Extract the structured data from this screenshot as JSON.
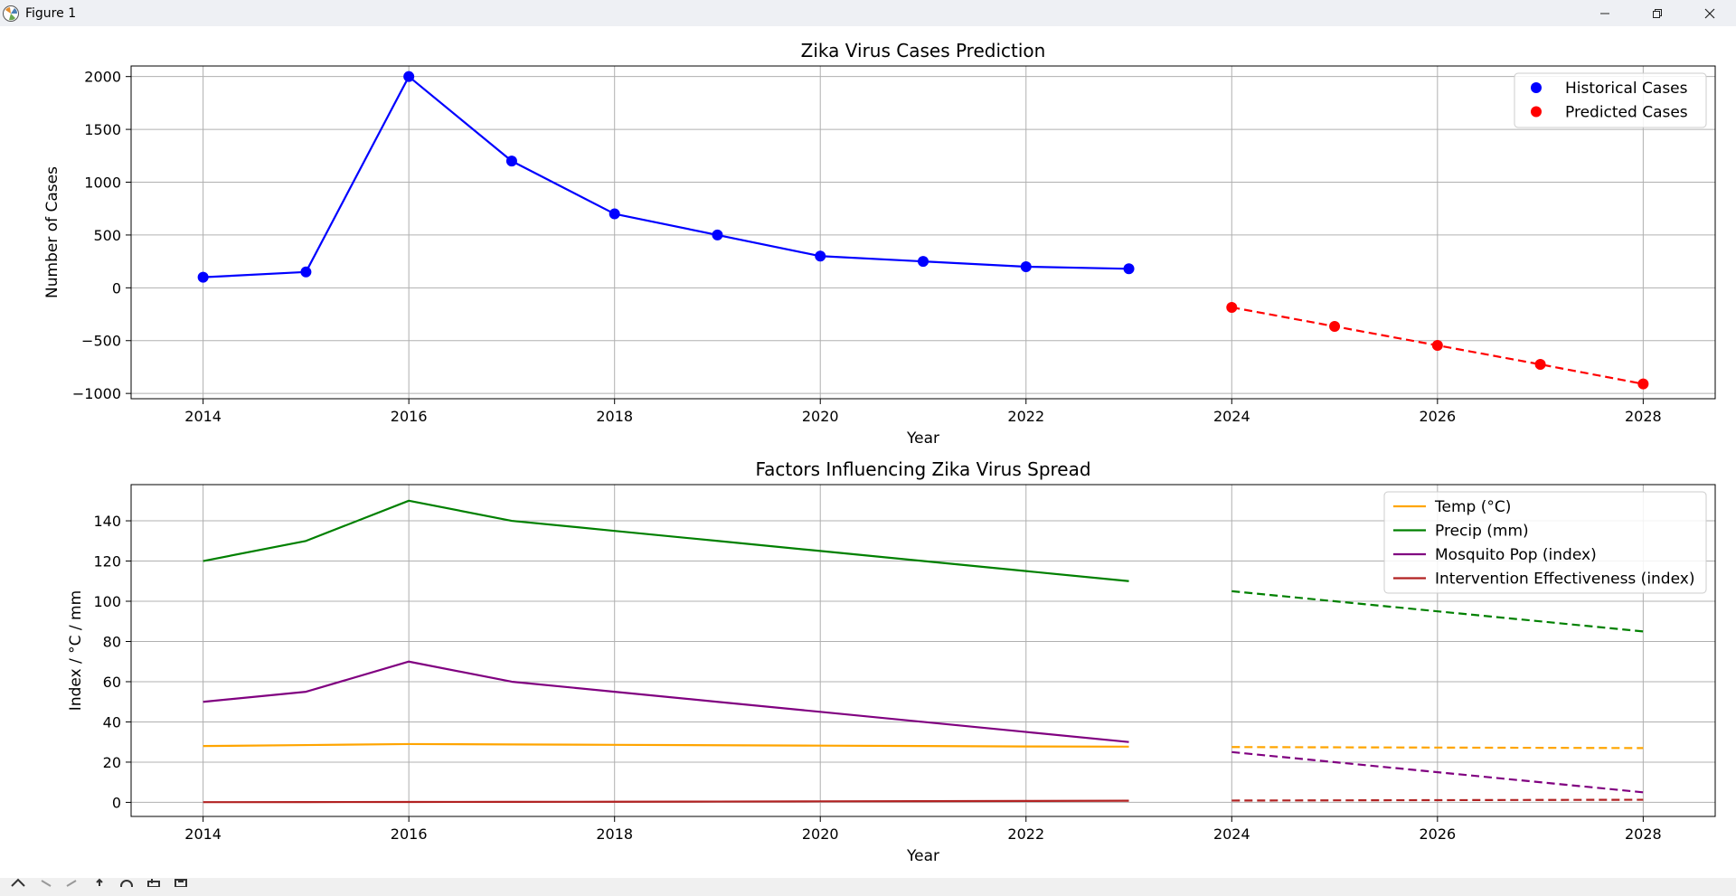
{
  "window": {
    "title": "Figure 1"
  },
  "toolbar": {
    "icons": [
      "home-icon",
      "back-icon",
      "forward-icon",
      "pan-icon",
      "zoom-icon",
      "configure-icon",
      "save-icon"
    ]
  },
  "colors": {
    "historical": "#0000ff",
    "predicted": "#ff0000",
    "temp": "#ffa500",
    "precip": "#008000",
    "mosquito": "#800080",
    "intervention": "#b22222"
  },
  "chart_data": [
    {
      "type": "line",
      "title": "Zika Virus Cases Prediction",
      "xlabel": "Year",
      "ylabel": "Number of Cases",
      "xlim": [
        2013.3,
        2028.7
      ],
      "ylim": [
        -1050,
        2100
      ],
      "xticks": [
        2014,
        2016,
        2018,
        2020,
        2022,
        2024,
        2026,
        2028
      ],
      "yticks": [
        -1000,
        -500,
        0,
        500,
        1000,
        1500,
        2000
      ],
      "ytick_labels": [
        "−1000",
        "−500",
        "0",
        "500",
        "1000",
        "1500",
        "2000"
      ],
      "grid": true,
      "legend": "top-right",
      "series": [
        {
          "name": "Historical Cases",
          "color": "#0000ff",
          "style": "solid",
          "markers": true,
          "x": [
            2014,
            2015,
            2016,
            2017,
            2018,
            2019,
            2020,
            2021,
            2022,
            2023
          ],
          "y": [
            100,
            150,
            2000,
            1200,
            700,
            500,
            300,
            250,
            200,
            180
          ]
        },
        {
          "name": "Predicted Cases",
          "color": "#ff0000",
          "style": "dashed",
          "markers": true,
          "x": [
            2024,
            2025,
            2026,
            2027,
            2028
          ],
          "y": [
            -185,
            -365,
            -545,
            -725,
            -910
          ]
        }
      ]
    },
    {
      "type": "line",
      "title": "Factors Influencing Zika Virus Spread",
      "xlabel": "Year",
      "ylabel": "Index / °C / mm",
      "xlim": [
        2013.3,
        2028.7
      ],
      "ylim": [
        -7,
        158
      ],
      "xticks": [
        2014,
        2016,
        2018,
        2020,
        2022,
        2024,
        2026,
        2028
      ],
      "yticks": [
        0,
        20,
        40,
        60,
        80,
        100,
        120,
        140
      ],
      "ytick_labels": [
        "0",
        "20",
        "40",
        "60",
        "80",
        "100",
        "120",
        "140"
      ],
      "grid": true,
      "legend": "top-right",
      "series": [
        {
          "name": "Temp (°C)",
          "color": "#ffa500",
          "style": "solid",
          "x": [
            2014,
            2015,
            2016,
            2017,
            2018,
            2019,
            2020,
            2021,
            2022,
            2023
          ],
          "y": [
            28,
            28.5,
            29,
            28.8,
            28.6,
            28.4,
            28.2,
            28,
            27.8,
            27.7
          ]
        },
        {
          "name": "Precip (mm)",
          "color": "#008000",
          "style": "solid",
          "x": [
            2014,
            2015,
            2016,
            2017,
            2018,
            2019,
            2020,
            2021,
            2022,
            2023
          ],
          "y": [
            120,
            130,
            150,
            140,
            135,
            130,
            125,
            120,
            115,
            110
          ]
        },
        {
          "name": "Mosquito Pop (index)",
          "color": "#800080",
          "style": "solid",
          "x": [
            2014,
            2015,
            2016,
            2017,
            2018,
            2019,
            2020,
            2021,
            2022,
            2023
          ],
          "y": [
            50,
            55,
            70,
            60,
            55,
            50,
            45,
            40,
            35,
            30
          ]
        },
        {
          "name": "Intervention Effectiveness (index)",
          "color": "#b22222",
          "style": "solid",
          "x": [
            2014,
            2015,
            2016,
            2017,
            2018,
            2019,
            2020,
            2021,
            2022,
            2023
          ],
          "y": [
            0.1,
            0.15,
            0.2,
            0.25,
            0.3,
            0.4,
            0.5,
            0.6,
            0.7,
            0.8
          ]
        },
        {
          "color": "#ffa500",
          "style": "dashed",
          "x": [
            2024,
            2028
          ],
          "y": [
            27.5,
            27
          ]
        },
        {
          "color": "#008000",
          "style": "dashed",
          "x": [
            2024,
            2028
          ],
          "y": [
            105,
            85
          ]
        },
        {
          "color": "#800080",
          "style": "dashed",
          "x": [
            2024,
            2028
          ],
          "y": [
            25,
            5
          ]
        },
        {
          "color": "#b22222",
          "style": "dashed",
          "x": [
            2024,
            2028
          ],
          "y": [
            0.9,
            1.3
          ]
        }
      ]
    }
  ]
}
